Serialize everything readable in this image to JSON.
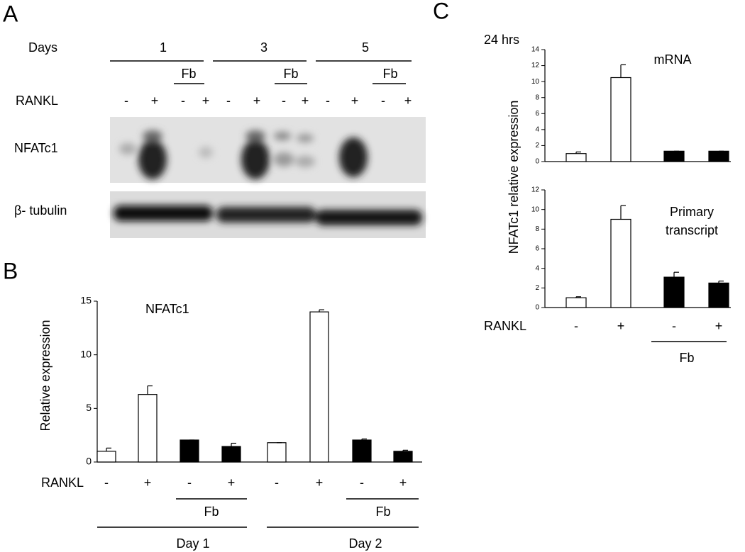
{
  "panel_labels": [
    "A",
    "B",
    "C"
  ],
  "blot": {
    "days_label": "Days",
    "days": [
      "1",
      "3",
      "5"
    ],
    "fb_label": "Fb",
    "rankl_label": "RANKL",
    "rankl_signs": [
      "-",
      "+",
      "-",
      "+",
      "-",
      "+",
      "-",
      "+",
      "-",
      "+",
      "-",
      "+"
    ],
    "rows": [
      "NFATc1",
      "β- tubulin"
    ]
  },
  "panel_c": {
    "hours": "24 hrs",
    "y_label": "NFATc1  relative expression",
    "row_label": "RANKL",
    "group_label": "Fb"
  },
  "chart_data": [
    {
      "type": "bar",
      "annotation": "NFATc1",
      "y_label": "Relative expression",
      "row_label": "RANKL",
      "categories": [
        "-",
        "+",
        "-",
        "+",
        "-",
        "+",
        "-",
        "+"
      ],
      "values": [
        1,
        6.3,
        2.05,
        1.45,
        1.8,
        14,
        2.05,
        1.0
      ],
      "errors": [
        0.3,
        0.8,
        0,
        0.3,
        0,
        0.2,
        0.1,
        0.1
      ],
      "colors": [
        "#ffffff",
        "#ffffff",
        "#000000",
        "#000000",
        "#ffffff",
        "#ffffff",
        "#000000",
        "#000000"
      ],
      "group_labels": [
        "Fb",
        "Fb"
      ],
      "day_labels": [
        "Day 1",
        "Day 2"
      ],
      "ylim": [
        0,
        15
      ],
      "yticks": [
        0,
        5,
        10,
        15
      ]
    },
    {
      "type": "bar",
      "annotation": "mRNA",
      "categories": [
        null,
        null,
        null,
        null
      ],
      "values": [
        1,
        10.5,
        1.3,
        1.3
      ],
      "errors": [
        0.2,
        1.6,
        0,
        0
      ],
      "colors": [
        "#ffffff",
        "#ffffff",
        "#000000",
        "#000000"
      ],
      "ylim": [
        0,
        14
      ],
      "yticks": [
        0,
        2,
        4,
        6,
        8,
        10,
        12,
        14
      ]
    },
    {
      "type": "bar",
      "annotation": [
        "Primary",
        "transcript"
      ],
      "categories": [
        "-",
        "+",
        "-",
        "+"
      ],
      "values": [
        1,
        9,
        3.1,
        2.5
      ],
      "errors": [
        0.1,
        1.4,
        0.5,
        0.2
      ],
      "colors": [
        "#ffffff",
        "#ffffff",
        "#000000",
        "#000000"
      ],
      "ylim": [
        0,
        12
      ],
      "yticks": [
        0,
        2,
        4,
        6,
        8,
        10,
        12
      ]
    }
  ]
}
